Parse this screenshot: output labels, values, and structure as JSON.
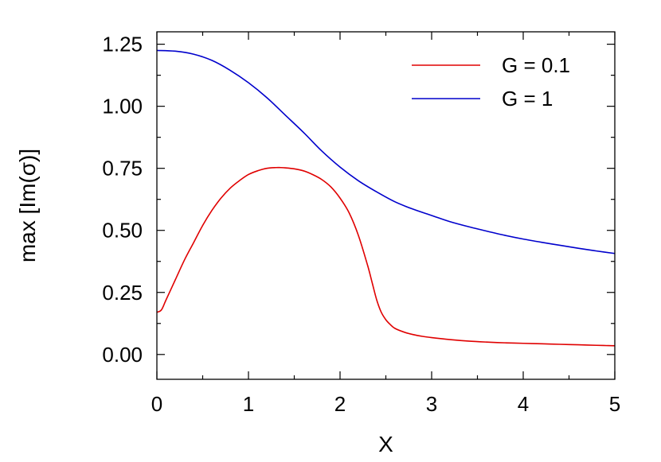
{
  "chart_data": {
    "type": "line",
    "title": "",
    "xlabel": "X",
    "ylabel": "max [Im(σ)]",
    "xlim": [
      0,
      5
    ],
    "ylim": [
      -0.1,
      1.3
    ],
    "xticks": [
      0,
      1,
      2,
      3,
      4,
      5
    ],
    "xtick_labels": [
      "0",
      "1",
      "2",
      "3",
      "4",
      "5"
    ],
    "yticks": [
      0,
      0.25,
      0.5,
      0.75,
      1.0,
      1.25
    ],
    "ytick_labels": [
      "0.00",
      "0.25",
      "0.50",
      "0.75",
      "1.00",
      "1.25"
    ],
    "grid": false,
    "legend_position": "top-right",
    "series": [
      {
        "name": "G = 0.1",
        "color": "#e00000",
        "x": [
          0,
          0.05,
          0.1,
          0.2,
          0.3,
          0.4,
          0.5,
          0.6,
          0.7,
          0.8,
          0.9,
          1.0,
          1.1,
          1.2,
          1.3,
          1.35,
          1.4,
          1.5,
          1.6,
          1.7,
          1.8,
          1.9,
          2.0,
          2.1,
          2.2,
          2.3,
          2.35,
          2.4,
          2.45,
          2.5,
          2.55,
          2.6,
          2.7,
          2.8,
          2.9,
          3.0,
          3.2,
          3.4,
          3.6,
          3.8,
          4.0,
          4.2,
          4.4,
          4.6,
          4.8,
          5.0
        ],
        "y": [
          0.17,
          0.18,
          0.22,
          0.3,
          0.38,
          0.45,
          0.52,
          0.58,
          0.63,
          0.67,
          0.7,
          0.725,
          0.74,
          0.75,
          0.753,
          0.753,
          0.752,
          0.748,
          0.74,
          0.725,
          0.705,
          0.675,
          0.63,
          0.57,
          0.48,
          0.36,
          0.29,
          0.22,
          0.17,
          0.14,
          0.12,
          0.105,
          0.09,
          0.08,
          0.073,
          0.068,
          0.06,
          0.054,
          0.05,
          0.047,
          0.045,
          0.043,
          0.041,
          0.039,
          0.037,
          0.035
        ]
      },
      {
        "name": "G = 1",
        "color": "#0000cc",
        "x": [
          0,
          0.2,
          0.4,
          0.6,
          0.8,
          1.0,
          1.2,
          1.4,
          1.6,
          1.8,
          2.0,
          2.2,
          2.4,
          2.6,
          2.8,
          3.0,
          3.2,
          3.4,
          3.6,
          3.8,
          4.0,
          4.2,
          4.4,
          4.6,
          4.8,
          5.0
        ],
        "y": [
          1.225,
          1.222,
          1.21,
          1.185,
          1.145,
          1.095,
          1.035,
          0.965,
          0.895,
          0.82,
          0.755,
          0.7,
          0.655,
          0.615,
          0.585,
          0.56,
          0.535,
          0.515,
          0.497,
          0.48,
          0.465,
          0.452,
          0.44,
          0.428,
          0.417,
          0.407
        ]
      }
    ]
  }
}
